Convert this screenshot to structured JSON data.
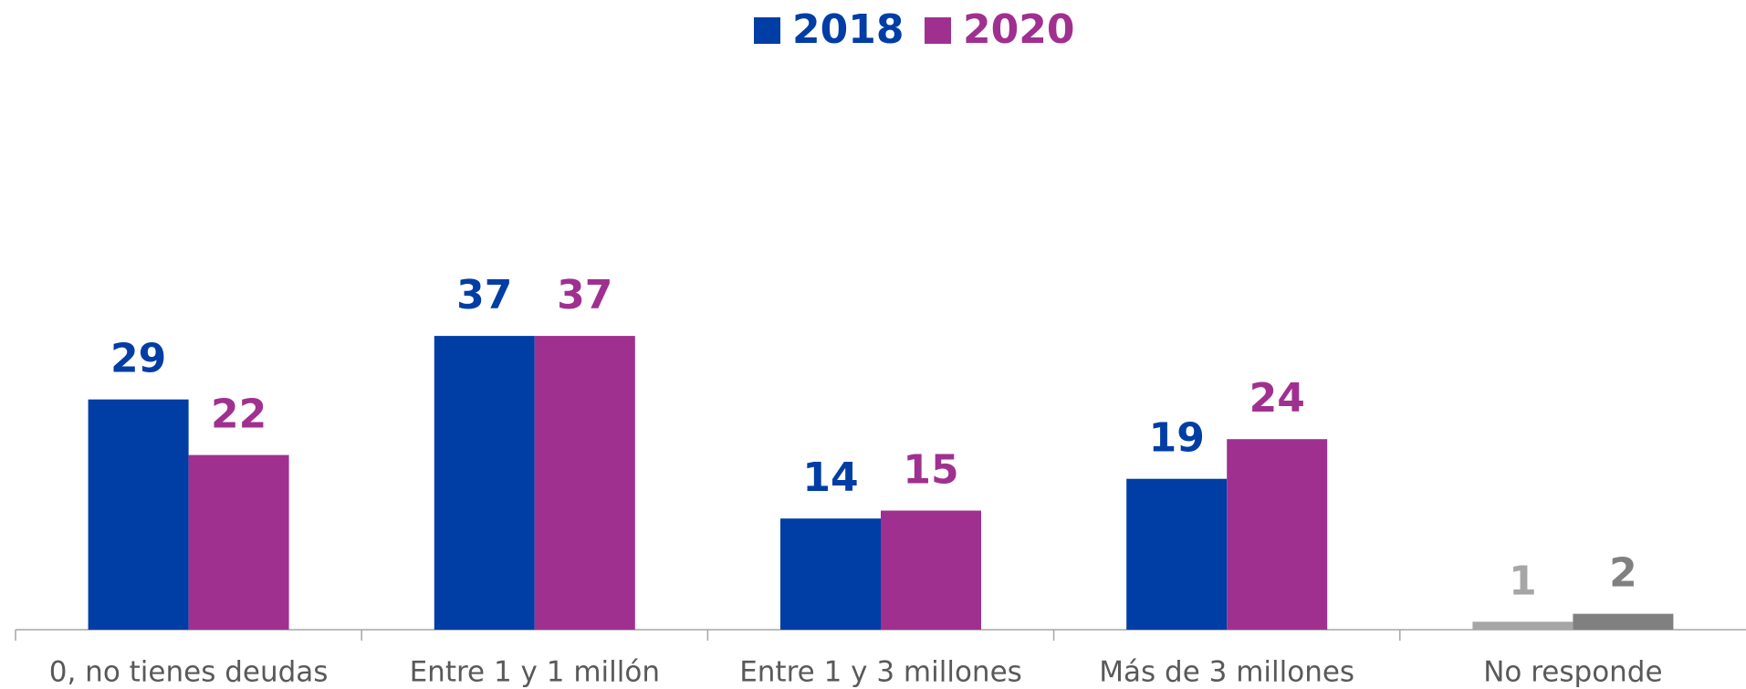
{
  "chart_data": {
    "type": "bar",
    "categories": [
      "0, no tienes deudas",
      "Entre 1 y 1 millón",
      "Entre 1 y 3 millones",
      "Más de 3 millones",
      "No responde"
    ],
    "series": [
      {
        "name": "2018",
        "color": "#003da5",
        "colors": [
          "#003da5",
          "#003da5",
          "#003da5",
          "#003da5",
          "#a6a6a6"
        ],
        "values": [
          29,
          37,
          14,
          19,
          1
        ]
      },
      {
        "name": "2020",
        "color": "#a03090",
        "colors": [
          "#a03090",
          "#a03090",
          "#a03090",
          "#a03090",
          "#808080"
        ],
        "values": [
          22,
          37,
          15,
          24,
          2
        ]
      }
    ],
    "ylim": [
      0,
      50
    ],
    "legend": "top"
  }
}
